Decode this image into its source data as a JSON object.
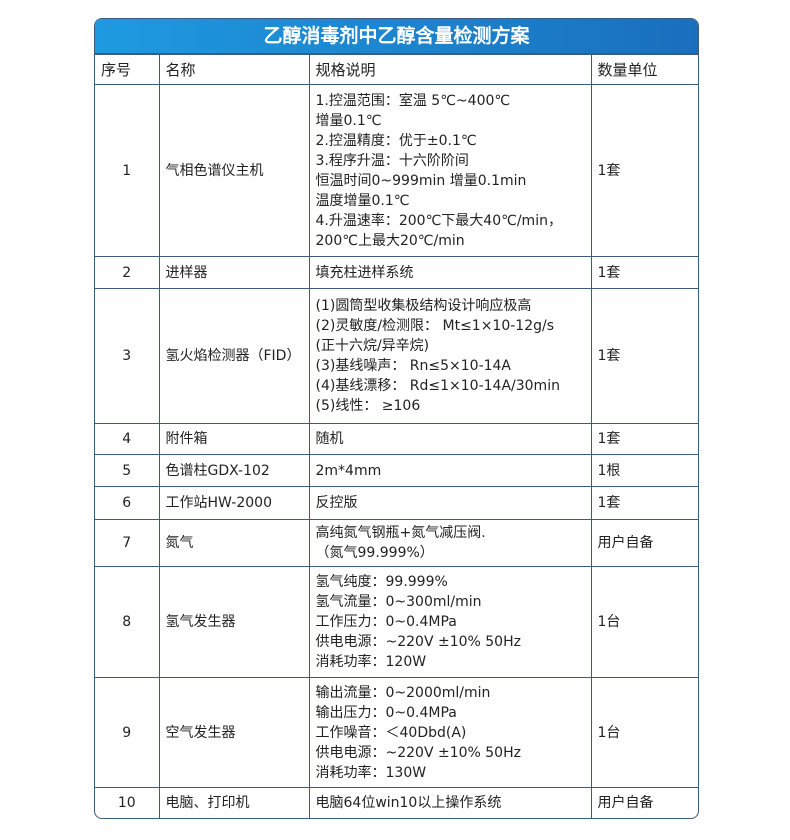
{
  "title": "乙醇消毒剂中乙醇含量检测方案",
  "headers": [
    "序号",
    "名称",
    "规格说明",
    "数量单位"
  ],
  "rows": [
    {
      "no": "1",
      "name": "气相色谱仪主机",
      "spec": [
        "1.控温范围：室温 5℃~400℃",
        "增量0.1℃",
        "2.控温精度：优于±0.1℃",
        "3.程序升温：十六阶阶间",
        "恒温时间0~999min 增量0.1min",
        "温度增量0.1℃",
        "4.升温速率：200℃下最大40℃/min，",
        "200℃上最大20℃/min"
      ],
      "qty": "1套"
    },
    {
      "no": "2",
      "name": "进样器",
      "spec": [
        "填充柱进样系统"
      ],
      "qty": "1套"
    },
    {
      "no": "3",
      "name": "氢火焰检测器（FID）",
      "spec": [
        "(1)圆筒型收集极结构设计响应极高",
        "(2)灵敏度/检测限： Mt≤1×10-12g/s",
        "(正十六烷/异辛烷)",
        "(3)基线噪声： Rn≤5×10-14A",
        "(4)基线漂移： Rd≤1×10-14A/30min",
        "(5)线性： ≥106"
      ],
      "qty": "1套"
    },
    {
      "no": "4",
      "name": "附件箱",
      "spec": [
        "随机"
      ],
      "qty": "1套"
    },
    {
      "no": "5",
      "name": "色谱柱GDX-102",
      "spec": [
        "2m*4mm"
      ],
      "qty": "1根"
    },
    {
      "no": "6",
      "name": "工作站HW-2000",
      "spec": [
        "反控版"
      ],
      "qty": "1套"
    },
    {
      "no": "7",
      "name": "氮气",
      "spec": [
        "高纯氮气钢瓶+氮气减压阀.",
        "（氮气99.999%）"
      ],
      "qty": "用户自备"
    },
    {
      "no": "8",
      "name": "氢气发生器",
      "spec": [
        "氢气纯度：99.999%",
        "氢气流量：0~300ml/min",
        "工作压力：0~0.4MPa",
        "供电电源：~220V ±10% 50Hz",
        "消耗功率：120W"
      ],
      "qty": "1台"
    },
    {
      "no": "9",
      "name": "空气发生器",
      "spec": [
        "输出流量：0~2000ml/min",
        "输出压力：0~0.4MPa",
        "工作噪音：＜40Dbd(A)",
        "供电电源：~220V ±10% 50Hz",
        "消耗功率：130W"
      ],
      "qty": "1台"
    },
    {
      "no": "10",
      "name": "电脑、打印机",
      "spec": [
        "电脑64位win10以上操作系统"
      ],
      "qty": "用户自备"
    }
  ]
}
